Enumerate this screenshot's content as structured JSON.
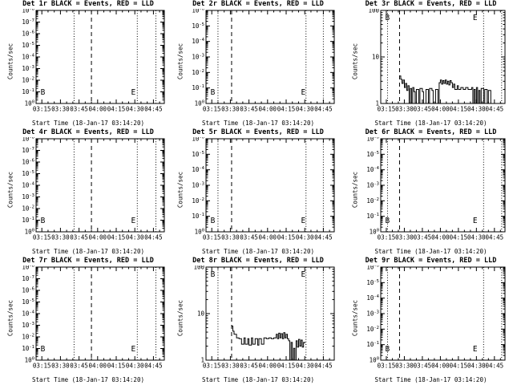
{
  "window": {
    "background": "#ffffff",
    "foreground": "#000000",
    "description": "3x3 grid of detector count-rate light curves, black-on-white scientific plots"
  },
  "chart_data": [
    {
      "type": "line",
      "det": "Det 1r",
      "title": "Det 1r BLACK = Events, RED = LLD",
      "ylabel": "Counts/sec",
      "xlabel": "Start Time (18-Jan-17 03:14:20)",
      "legend": {
        "black": "Events",
        "red": "LLD"
      },
      "x_ticks": [
        "03:15",
        "03:30",
        "03:45",
        "04:00",
        "04:15",
        "04:30",
        "04:45"
      ],
      "y_ticks": [
        "10^0",
        "10^-1",
        "10^-2",
        "10^-3",
        "10^-4",
        "10^-5",
        "10^-6",
        "10^-7",
        "10^-8"
      ],
      "grid": false,
      "vlines": [
        {
          "time": "03:41",
          "style": "dotted"
        },
        {
          "time": "03:55",
          "style": "dashed"
        },
        {
          "time": "04:32",
          "style": "dotted"
        },
        {
          "time": "04:47",
          "style": "dotted"
        }
      ],
      "markers": [
        {
          "label": "B",
          "time": "03:14",
          "level": "bottom"
        },
        {
          "label": "E",
          "time": "04:27",
          "level": "bottom"
        }
      ],
      "series": []
    },
    {
      "type": "line",
      "det": "Det 2r",
      "title": "Det 2r BLACK = Events, RED = LLD",
      "ylabel": "Counts/sec",
      "xlabel": "Start Time (18-Jan-17 03:14:20)",
      "legend": {
        "black": "Events",
        "red": "LLD"
      },
      "x_ticks": [
        "03:15",
        "03:30",
        "03:45",
        "04:00",
        "04:15",
        "04:30",
        "04:45"
      ],
      "y_ticks": [
        "10^0",
        "10^-1",
        "10^-2",
        "10^-3",
        "10^-4",
        "10^-5",
        "10^-6"
      ],
      "grid": false,
      "vlines": [
        {
          "time": "03:20",
          "style": "dotted"
        },
        {
          "time": "03:31",
          "style": "dashed"
        },
        {
          "time": "04:31",
          "style": "dotted"
        },
        {
          "time": "04:45",
          "style": "dotted"
        }
      ],
      "markers": [
        {
          "label": "B",
          "time": "03:14",
          "level": "bottom"
        },
        {
          "label": "E",
          "time": "04:27",
          "level": "bottom"
        }
      ],
      "series": []
    },
    {
      "type": "line",
      "det": "Det 3r",
      "title": "Det 3r BLACK = Events, RED = LLD",
      "ylabel": "Counts/sec",
      "xlabel": "Start Time (18-Jan-17 03:14:20)",
      "legend": {
        "black": "Events",
        "red": "LLD"
      },
      "x_ticks": [
        "03:15",
        "03:30",
        "03:45",
        "04:00",
        "04:15",
        "04:30",
        "04:45"
      ],
      "y_ticks": [
        "1",
        "10",
        "100"
      ],
      "ylim": [
        1,
        100
      ],
      "grid": false,
      "vlines": [
        {
          "time": "03:16",
          "style": "dotted"
        },
        {
          "time": "03:26",
          "style": "dashed"
        },
        {
          "time": "04:36",
          "style": "dotted"
        },
        {
          "time": "04:51",
          "style": "dotted"
        }
      ],
      "markers": [
        {
          "label": "B",
          "time": "03:14",
          "level": "top"
        },
        {
          "label": "E",
          "time": "04:27",
          "level": "top"
        }
      ],
      "series": [
        {
          "name": "Events",
          "color": "#000000",
          "points": [
            [
              "03:26",
              3.9
            ],
            [
              "03:27",
              3.3
            ],
            [
              "03:28",
              2.7
            ],
            [
              "03:29",
              3.2
            ],
            [
              "03:30",
              2.2
            ],
            [
              "03:31",
              2.7
            ],
            [
              "03:32",
              1.9
            ],
            [
              "03:33",
              2.4
            ],
            [
              "03:34",
              1.0
            ],
            [
              "03:35",
              2.1
            ],
            [
              "03:36",
              1.0
            ],
            [
              "03:37",
              2.2
            ],
            [
              "03:38",
              1.8
            ],
            [
              "03:39",
              1.0
            ],
            [
              "03:40",
              2.0
            ],
            [
              "03:42",
              1.0
            ],
            [
              "03:43",
              2.1
            ],
            [
              "03:45",
              1.8
            ],
            [
              "03:46",
              1.0
            ],
            [
              "03:48",
              2.0
            ],
            [
              "03:50",
              1.0
            ],
            [
              "03:51",
              2.1
            ],
            [
              "03:53",
              1.9
            ],
            [
              "03:54",
              1.0
            ],
            [
              "03:56",
              2.0
            ],
            [
              "03:58",
              1.0
            ],
            [
              "03:59",
              2.8
            ],
            [
              "04:00",
              3.2
            ],
            [
              "04:01",
              2.6
            ],
            [
              "04:02",
              3.1
            ],
            [
              "04:03",
              2.7
            ],
            [
              "04:04",
              3.2
            ],
            [
              "04:05",
              2.6
            ],
            [
              "04:06",
              3.0
            ],
            [
              "04:07",
              2.5
            ],
            [
              "04:08",
              3.1
            ],
            [
              "04:09",
              2.8
            ],
            [
              "04:10",
              2.2
            ],
            [
              "04:11",
              2.6
            ],
            [
              "04:12",
              2.0
            ],
            [
              "04:14",
              2.4
            ],
            [
              "04:15",
              2.0
            ],
            [
              "04:17",
              2.2
            ],
            [
              "04:19",
              2.0
            ],
            [
              "04:21",
              2.2
            ],
            [
              "04:23",
              2.0
            ],
            [
              "04:26",
              2.2
            ],
            [
              "04:27",
              1.0
            ],
            [
              "04:28",
              2.0
            ],
            [
              "04:29",
              1.0
            ],
            [
              "04:30",
              2.2
            ],
            [
              "04:31",
              1.0
            ],
            [
              "04:32",
              1.9
            ],
            [
              "04:33",
              1.0
            ],
            [
              "04:34",
              2.1
            ],
            [
              "04:36",
              1.0
            ],
            [
              "04:37",
              2.0
            ],
            [
              "04:39",
              1.0
            ],
            [
              "04:40",
              1.9
            ],
            [
              "04:42",
              1.0
            ]
          ]
        }
      ]
    },
    {
      "type": "line",
      "det": "Det 4r",
      "title": "Det 4r BLACK = Events, RED = LLD",
      "ylabel": "Counts/sec",
      "xlabel": "Start Time (18-Jan-17 03:14:20)",
      "legend": {
        "black": "Events",
        "red": "LLD"
      },
      "x_ticks": [
        "03:15",
        "03:30",
        "03:45",
        "04:00",
        "04:15",
        "04:30",
        "04:45"
      ],
      "y_ticks": [
        "10^0",
        "10^-1",
        "10^-2",
        "10^-3",
        "10^-4",
        "10^-5",
        "10^-6",
        "10^-7",
        "10^-8"
      ],
      "grid": false,
      "vlines": [
        {
          "time": "03:41",
          "style": "dotted"
        },
        {
          "time": "03:55",
          "style": "dashed"
        },
        {
          "time": "04:32",
          "style": "dotted"
        },
        {
          "time": "04:47",
          "style": "dotted"
        }
      ],
      "markers": [
        {
          "label": "B",
          "time": "03:14",
          "level": "bottom"
        },
        {
          "label": "E",
          "time": "04:27",
          "level": "bottom"
        }
      ],
      "series": []
    },
    {
      "type": "line",
      "det": "Det 5r",
      "title": "Det 5r BLACK = Events, RED = LLD",
      "ylabel": "Counts/sec",
      "xlabel": "Start Time (18-Jan-17 03:14:20)",
      "legend": {
        "black": "Events",
        "red": "LLD"
      },
      "x_ticks": [
        "03:15",
        "03:30",
        "03:45",
        "04:00",
        "04:15",
        "04:30",
        "04:45"
      ],
      "y_ticks": [
        "10^0",
        "10^-1",
        "10^-2",
        "10^-3",
        "10^-4",
        "10^-5",
        "10^-6"
      ],
      "grid": false,
      "vlines": [
        {
          "time": "03:20",
          "style": "dotted"
        },
        {
          "time": "03:31",
          "style": "dashed"
        },
        {
          "time": "04:31",
          "style": "dotted"
        },
        {
          "time": "04:45",
          "style": "dotted"
        }
      ],
      "markers": [
        {
          "label": "B",
          "time": "03:14",
          "level": "bottom"
        },
        {
          "label": "E",
          "time": "04:27",
          "level": "bottom"
        }
      ],
      "series": []
    },
    {
      "type": "line",
      "det": "Det 6r",
      "title": "Det 6r BLACK = Events, RED = LLD",
      "ylabel": "Counts/sec",
      "xlabel": "Start Time (18-Jan-17 03:14:20)",
      "legend": {
        "black": "Events",
        "red": "LLD"
      },
      "x_ticks": [
        "03:15",
        "03:30",
        "03:45",
        "04:00",
        "04:15",
        "04:30",
        "04:45"
      ],
      "y_ticks": [
        "10^0",
        "10^-1",
        "10^-2",
        "10^-3",
        "10^-4",
        "10^-5",
        "10^-6"
      ],
      "grid": false,
      "vlines": [
        {
          "time": "03:16",
          "style": "dotted"
        },
        {
          "time": "03:26",
          "style": "dashed"
        },
        {
          "time": "04:36",
          "style": "dotted"
        },
        {
          "time": "04:51",
          "style": "dotted"
        }
      ],
      "markers": [
        {
          "label": "B",
          "time": "03:14",
          "level": "bottom"
        },
        {
          "label": "E",
          "time": "04:27",
          "level": "bottom"
        }
      ],
      "series": []
    },
    {
      "type": "line",
      "det": "Det 7r",
      "title": "Det 7r BLACK = Events, RED = LLD",
      "ylabel": "Counts/sec",
      "xlabel": "Start Time (18-Jan-17 03:14:20)",
      "legend": {
        "black": "Events",
        "red": "LLD"
      },
      "x_ticks": [
        "03:15",
        "03:30",
        "03:45",
        "04:00",
        "04:15",
        "04:30",
        "04:45"
      ],
      "y_ticks": [
        "10^0",
        "10^-1",
        "10^-2",
        "10^-3",
        "10^-4",
        "10^-5",
        "10^-6",
        "10^-7",
        "10^-8"
      ],
      "grid": false,
      "vlines": [
        {
          "time": "03:41",
          "style": "dotted"
        },
        {
          "time": "03:55",
          "style": "dashed"
        },
        {
          "time": "04:32",
          "style": "dotted"
        },
        {
          "time": "04:47",
          "style": "dotted"
        }
      ],
      "markers": [
        {
          "label": "B",
          "time": "03:14",
          "level": "bottom"
        },
        {
          "label": "E",
          "time": "04:27",
          "level": "bottom"
        }
      ],
      "series": []
    },
    {
      "type": "line",
      "det": "Det 8r",
      "title": "Det 8r BLACK = Events, RED = LLD",
      "ylabel": "Counts/sec",
      "xlabel": "Start Time (18-Jan-17 03:14:20)",
      "legend": {
        "black": "Events",
        "red": "LLD"
      },
      "x_ticks": [
        "03:15",
        "03:30",
        "03:45",
        "04:00",
        "04:15",
        "04:30",
        "04:45"
      ],
      "y_ticks": [
        "1",
        "10",
        "100"
      ],
      "ylim": [
        1,
        100
      ],
      "grid": false,
      "vlines": [
        {
          "time": "03:20",
          "style": "dotted"
        },
        {
          "time": "03:31",
          "style": "dashed"
        },
        {
          "time": "04:31",
          "style": "dotted"
        },
        {
          "time": "04:45",
          "style": "dotted"
        }
      ],
      "markers": [
        {
          "label": "B",
          "time": "03:14",
          "level": "top"
        },
        {
          "label": "E",
          "time": "04:27",
          "level": "top"
        }
      ],
      "series": [
        {
          "name": "Events",
          "color": "#000000",
          "points": [
            [
              "03:31",
              5.4
            ],
            [
              "03:32",
              4.2
            ],
            [
              "03:33",
              3.6
            ],
            [
              "03:35",
              3.0
            ],
            [
              "03:37",
              2.9
            ],
            [
              "03:39",
              2.2
            ],
            [
              "03:41",
              3.0
            ],
            [
              "03:42",
              2.2
            ],
            [
              "03:44",
              2.9
            ],
            [
              "03:45",
              2.1
            ],
            [
              "03:47",
              3.0
            ],
            [
              "03:48",
              2.2
            ],
            [
              "03:50",
              2.9
            ],
            [
              "03:52",
              2.1
            ],
            [
              "03:53",
              2.9
            ],
            [
              "03:55",
              2.2
            ],
            [
              "03:57",
              3.0
            ],
            [
              "03:59",
              2.9
            ],
            [
              "04:01",
              3.0
            ],
            [
              "04:03",
              2.9
            ],
            [
              "04:05",
              3.0
            ],
            [
              "04:07",
              3.6
            ],
            [
              "04:08",
              2.9
            ],
            [
              "04:09",
              3.8
            ],
            [
              "04:10",
              3.0
            ],
            [
              "04:11",
              3.7
            ],
            [
              "04:12",
              2.9
            ],
            [
              "04:13",
              3.9
            ],
            [
              "04:14",
              3.0
            ],
            [
              "04:15",
              3.6
            ],
            [
              "04:16",
              2.9
            ],
            [
              "04:17",
              2.6
            ],
            [
              "04:18",
              1.0
            ],
            [
              "04:19",
              2.4
            ],
            [
              "04:20",
              1.0
            ],
            [
              "04:21",
              1.8
            ],
            [
              "04:22",
              1.0
            ],
            [
              "04:23",
              2.6
            ],
            [
              "04:24",
              1.9
            ],
            [
              "04:25",
              2.8
            ],
            [
              "04:26",
              2.0
            ],
            [
              "04:27",
              2.7
            ],
            [
              "04:28",
              1.9
            ],
            [
              "04:29",
              2.4
            ],
            [
              "04:30",
              2.3
            ]
          ]
        }
      ]
    },
    {
      "type": "line",
      "det": "Det 9r",
      "title": "Det 9r BLACK = Events, RED = LLD",
      "ylabel": "Counts/sec",
      "xlabel": "Start Time (18-Jan-17 03:14:20)",
      "legend": {
        "black": "Events",
        "red": "LLD"
      },
      "x_ticks": [
        "03:15",
        "03:30",
        "03:45",
        "04:00",
        "04:15",
        "04:30",
        "04:45"
      ],
      "y_ticks": [
        "10^0",
        "10^-1",
        "10^-2",
        "10^-3",
        "10^-4",
        "10^-5",
        "10^-6"
      ],
      "grid": false,
      "vlines": [
        {
          "time": "03:16",
          "style": "dotted"
        },
        {
          "time": "03:26",
          "style": "dashed"
        },
        {
          "time": "04:36",
          "style": "dotted"
        },
        {
          "time": "04:51",
          "style": "dotted"
        }
      ],
      "markers": [
        {
          "label": "B",
          "time": "03:14",
          "level": "bottom"
        },
        {
          "label": "E",
          "time": "04:27",
          "level": "bottom"
        }
      ],
      "series": []
    }
  ]
}
